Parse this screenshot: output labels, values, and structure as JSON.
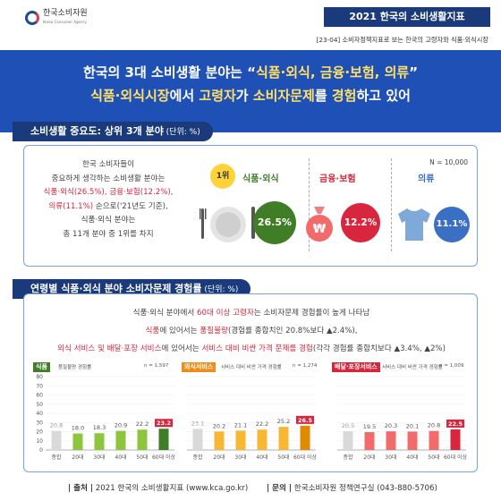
{
  "header": {
    "logo_text": "한국소비자원",
    "logo_sub": "Korea Consumer Agency",
    "report_title": "2021 한국의 소비생활지표",
    "subline": "[23-04] 소비자정책지표로 보는 한국의 고령자와 식품·외식시장"
  },
  "hero": {
    "l1_a": "한국의 3대 소비생활 분야는 “",
    "l1_b": "식품·외식, 금융·보험, 의류",
    "l1_c": "”",
    "l2_a": "식품·외식시장",
    "l2_b": "에서 ",
    "l2_c": "고령자",
    "l2_d": "가 ",
    "l2_e": "소비자문제",
    "l2_f": "를 ",
    "l2_g": "경험",
    "l2_h": "하고 있어"
  },
  "section1": {
    "title": "소비생활 중요도: 상위 3개 분야",
    "unit": " (단위: %)",
    "text": {
      "line1": "한국 소비자들이",
      "line2": "중요하게 생각하는 소비생활 분야는",
      "line3_a": "식품·외식(26.5%), 금융·보험(12.2%),",
      "line4_a": "의류(11.1%)",
      "line4_b": " 순으로('21년도 기준),",
      "line5": "식품·외식 분야는",
      "line6": "총 11개 분야 중 1위를 차지"
    },
    "n_note": "N = 10,000",
    "rank_badge": "1위",
    "categories": [
      {
        "label": "식품·외식",
        "value": "26.5%",
        "color": "#3f7d27"
      },
      {
        "label": "금융·보험",
        "value": "12.2%",
        "color": "#d7263d"
      },
      {
        "label": "의류",
        "value": "11.1%",
        "color": "#3a6fc4"
      }
    ]
  },
  "section2": {
    "title": "연령별 식품·외식 분야 소비자문제 경험률",
    "unit": " (단위: %)",
    "text": {
      "line1_a": "식품·외식 분야에서 ",
      "line1_b": "60대 이상 고령자",
      "line1_c": "는 소비자문제 경험률이 높게 나타남",
      "line2_a": "식품",
      "line2_b": "에 있어서는 ",
      "line2_c": "품질불량",
      "line2_d": "(경험률 종합치인 20.8%보다 ▲2.4%),",
      "line3_a": "외식 서비스 및 배달·포장 서비스",
      "line3_b": "에 있어서는 ",
      "line3_c": "서비스 대비 비싼 가격 문제를 경험",
      "line3_d": "(각각 경험률 종합치보다 ▲3.4%, ▲2%)"
    }
  },
  "chart_data": [
    {
      "type": "bar",
      "tag": "식품",
      "title": "품질불량 경험률",
      "n": "n = 1,597",
      "categories": [
        "종합",
        "20대",
        "30대",
        "40대",
        "50대",
        "60대 이상"
      ],
      "values": [
        20.8,
        18.0,
        18.3,
        20.9,
        22.2,
        23.2
      ],
      "ylim": [
        0,
        80
      ],
      "yticks": [
        0,
        10,
        20,
        30,
        40,
        50,
        60,
        70,
        80
      ],
      "color": "#8cc63f",
      "highlight_color": "#3f7d27",
      "label_color": "#d7263d",
      "tag_color": "#3f7d27"
    },
    {
      "type": "bar",
      "tag": "외식서비스",
      "title": "서비스 대비 비싼 가격 경험률",
      "n": "n = 1,274",
      "categories": [
        "종합",
        "20대",
        "30대",
        "40대",
        "50대",
        "60대 이상"
      ],
      "values": [
        23.1,
        20.2,
        21.1,
        22.2,
        25.2,
        26.5
      ],
      "ylim": [
        0,
        80
      ],
      "color": "#f7b733",
      "highlight_color": "#e08a00",
      "label_color": "#d7263d",
      "tag_color": "#f08c1a"
    },
    {
      "type": "bar",
      "tag": "배달·포장서비스",
      "title": "서비스 대비 비싼 가격 경험률",
      "n": "n = 1,009",
      "categories": [
        "종합",
        "20대",
        "30대",
        "40대",
        "50대",
        "60대 이상"
      ],
      "values": [
        20.5,
        19.5,
        20.3,
        20.1,
        20.8,
        22.5
      ],
      "ylim": [
        0,
        80
      ],
      "color": "#f26b6b",
      "highlight_color": "#d7263d",
      "label_color": "#d7263d",
      "tag_color": "#d7263d"
    }
  ],
  "footer": {
    "source_label": "| 출처 |",
    "source": " 2021 한국의 소비생활지표 (www.kca.go.kr)",
    "contact_label": "| 문의 |",
    "contact": " 한국소비자원 정책연구실 (043-880-5706)"
  }
}
